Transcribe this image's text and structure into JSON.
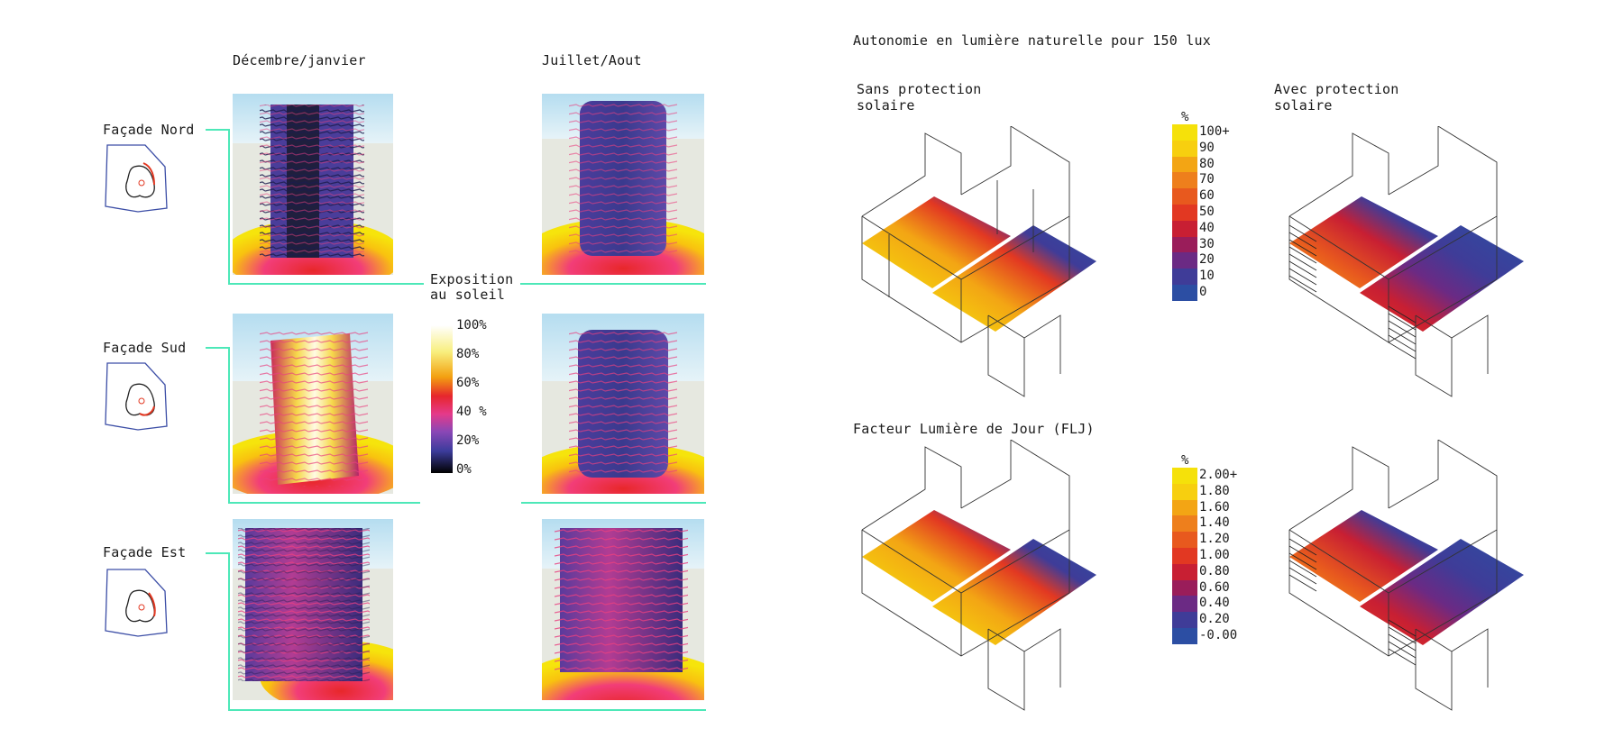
{
  "left": {
    "columns": [
      "Décembre/janvier",
      "Juillet/Aout"
    ],
    "rows": [
      {
        "label": "Façade Nord"
      },
      {
        "label": "Façade Sud"
      },
      {
        "label": "Façade Est"
      }
    ],
    "exposure_legend": {
      "title_line1": "Exposition",
      "title_line2": "au soleil",
      "ticks": [
        "100%",
        "80%",
        "60%",
        "40 %",
        "20%",
        "0%"
      ]
    }
  },
  "right": {
    "title": "Autonomie en lumière naturelle pour 150 lux",
    "col1_line1": "Sans protection",
    "col1_line2": "solaire",
    "col2_line1": "Avec protection",
    "col2_line2": "solaire",
    "flj_title": "Facteur Lumière de Jour (FLJ)",
    "legend1": {
      "unit": "%",
      "labels": [
        "100+",
        "90",
        "80",
        "70",
        "60",
        "50",
        "40",
        "30",
        "20",
        "10",
        "0"
      ],
      "colors": [
        "#f5e10a",
        "#f7cf0f",
        "#f3a514",
        "#ee7f1c",
        "#e8591e",
        "#e23822",
        "#c81f33",
        "#9a1d5a",
        "#6b2a84",
        "#3f3c98",
        "#2c4ea3"
      ]
    },
    "legend2": {
      "unit": "%",
      "labels": [
        "2.00+",
        "1.80",
        "1.60",
        "1.40",
        "1.20",
        "1.00",
        "0.80",
        "0.60",
        "0.40",
        "0.20",
        "-0.00"
      ],
      "colors": [
        "#f5e10a",
        "#f7cf0f",
        "#f3a514",
        "#ee7f1c",
        "#e8591e",
        "#e23822",
        "#c81f33",
        "#9a1d5a",
        "#6b2a84",
        "#3f3c98",
        "#2c4ea3"
      ]
    }
  },
  "colors": {
    "connector": "#4de8b8",
    "sky": "#bfe3f2",
    "ground": "#e6e8e0",
    "tower_dark": "#3d3f8f",
    "tower_mid": "#6a4fb0",
    "hot_yellow": "#f6e40c",
    "hot_red": "#e8272a"
  }
}
